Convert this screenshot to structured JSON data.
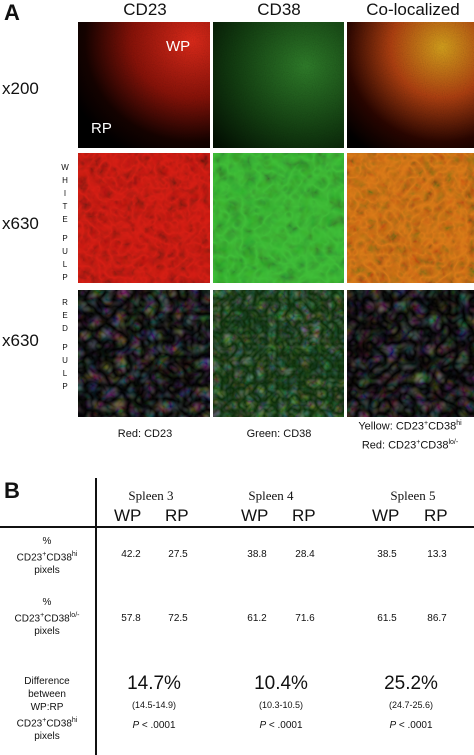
{
  "panel_a": {
    "letter": "A",
    "columns": [
      "CD23",
      "CD38",
      "Co-localized"
    ],
    "rows": [
      {
        "magnification": "x200",
        "side_label": []
      },
      {
        "magnification": "x630",
        "side_label": [
          "W",
          "H",
          "I",
          "T",
          "E",
          "",
          "P",
          "U",
          "L",
          "P"
        ]
      },
      {
        "magnification": "x630",
        "side_label": [
          "R",
          "E",
          "D",
          "",
          "P",
          "U",
          "L",
          "P"
        ]
      }
    ],
    "in_panel_labels": {
      "wp": "WP",
      "rp": "RP"
    },
    "captions": {
      "red": "Red: CD23",
      "green": "Green: CD38",
      "yellow_prefix": "Yellow: CD23",
      "yellow_mid": "+",
      "yellow_cd38": "CD38",
      "yellow_sup": "hi",
      "red2_prefix": "Red: CD23",
      "red2_mid": "+",
      "red2_cd38": "CD38",
      "red2_sup": "lo/-"
    },
    "colors": {
      "red": "#e0201a",
      "green": "#3bb63a",
      "yellow": "#f5e23a",
      "black": "#000000"
    }
  },
  "panel_b": {
    "letter": "B",
    "spleens": [
      "Spleen 3",
      "Spleen 4",
      "Spleen 5"
    ],
    "sub_headers": [
      "WP",
      "RP"
    ],
    "row_hi": {
      "label_pct": "%",
      "label_main": "CD23",
      "label_plus": "+",
      "label_cd38": "CD38",
      "label_sup": "hi",
      "label_end": "pixels",
      "values": [
        [
          "42.2",
          "27.5"
        ],
        [
          "38.8",
          "28.4"
        ],
        [
          "38.5",
          "13.3"
        ]
      ]
    },
    "row_lo": {
      "label_pct": "%",
      "label_main": "CD23",
      "label_plus": "+",
      "label_cd38": "CD38",
      "label_sup": "lo/-",
      "label_end": "pixels",
      "values": [
        [
          "57.8",
          "72.5"
        ],
        [
          "61.2",
          "71.6"
        ],
        [
          "61.5",
          "86.7"
        ]
      ]
    },
    "row_diff": {
      "label_lines": [
        "Difference",
        "between",
        "WP:RP"
      ],
      "label_main": "CD23",
      "label_plus": "+",
      "label_cd38": "CD38",
      "label_sup": "hi",
      "label_end": "pixels",
      "values": [
        "14.7%",
        "10.4%",
        "25.2%"
      ],
      "ranges": [
        "(14.5-14.9)",
        "(10.3-10.5)",
        "(24.7-25.6)"
      ],
      "p_letter": "P",
      "p_values": [
        "< .0001",
        "< .0001",
        "< .0001"
      ]
    }
  }
}
